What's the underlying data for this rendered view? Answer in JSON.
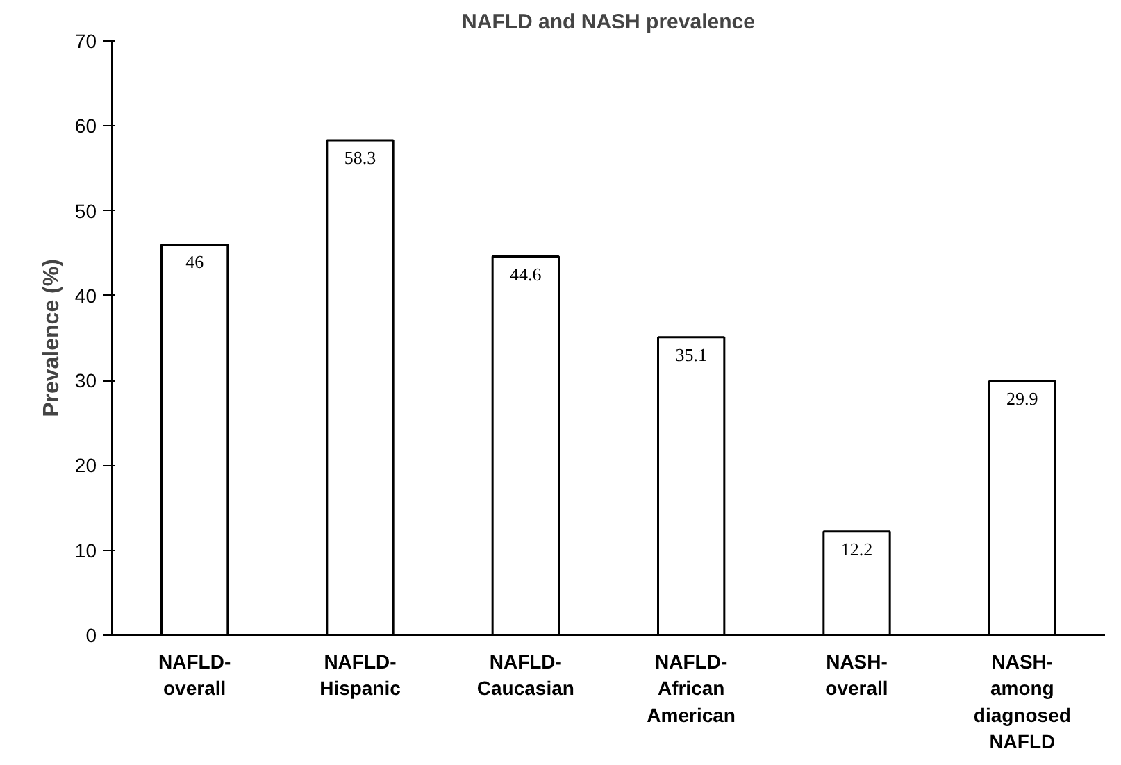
{
  "chart_data": {
    "type": "bar",
    "title": "NAFLD and NASH prevalence",
    "ylabel": "Prevalence (%)",
    "categories": [
      "NAFLD-\noverall",
      "NAFLD-\nHispanic",
      "NAFLD-\nCaucasian",
      "NAFLD-\nAfrican\nAmerican",
      "NASH-\noverall",
      "NASH-\namong\ndiagnosed\nNAFLD"
    ],
    "values": [
      46,
      58.3,
      44.6,
      35.1,
      12.2,
      29.9
    ],
    "color": "#ffffff",
    "ylim": [
      0,
      70
    ],
    "yticks": [
      0,
      10,
      20,
      30,
      40,
      50,
      60,
      70
    ],
    "grid": false,
    "data_labels": true
  }
}
